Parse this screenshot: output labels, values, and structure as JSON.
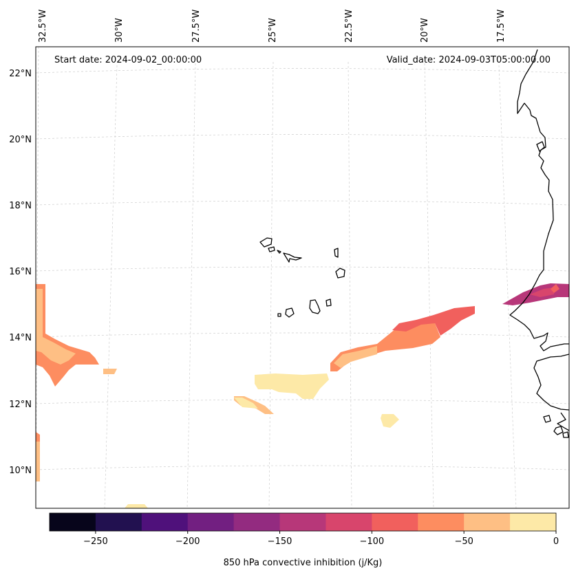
{
  "annotations": {
    "start_date": "Start date: 2024-09-02_00:00:00",
    "valid_date": "Valid_date: 2024-09-03T05:00:00.00"
  },
  "axes": {
    "lon_ticks": [
      "32.5°W",
      "30°W",
      "27.5°W",
      "25°W",
      "22.5°W",
      "20°W",
      "17.5°W"
    ],
    "lat_ticks": [
      "22°N",
      "20°N",
      "18°N",
      "16°N",
      "14°N",
      "12°N",
      "10°N"
    ]
  },
  "colorbar": {
    "label": "850 hPa convective inhibition (j/Kg)",
    "ticks": [
      "−250",
      "−200",
      "−150",
      "−100",
      "−50",
      "0"
    ],
    "colors": [
      "#07051b",
      "#221150",
      "#4f117b",
      "#721f81",
      "#932b80",
      "#b73779",
      "#d8456c",
      "#f1605d",
      "#fd8d60",
      "#febf84",
      "#fde9a7"
    ]
  }
}
